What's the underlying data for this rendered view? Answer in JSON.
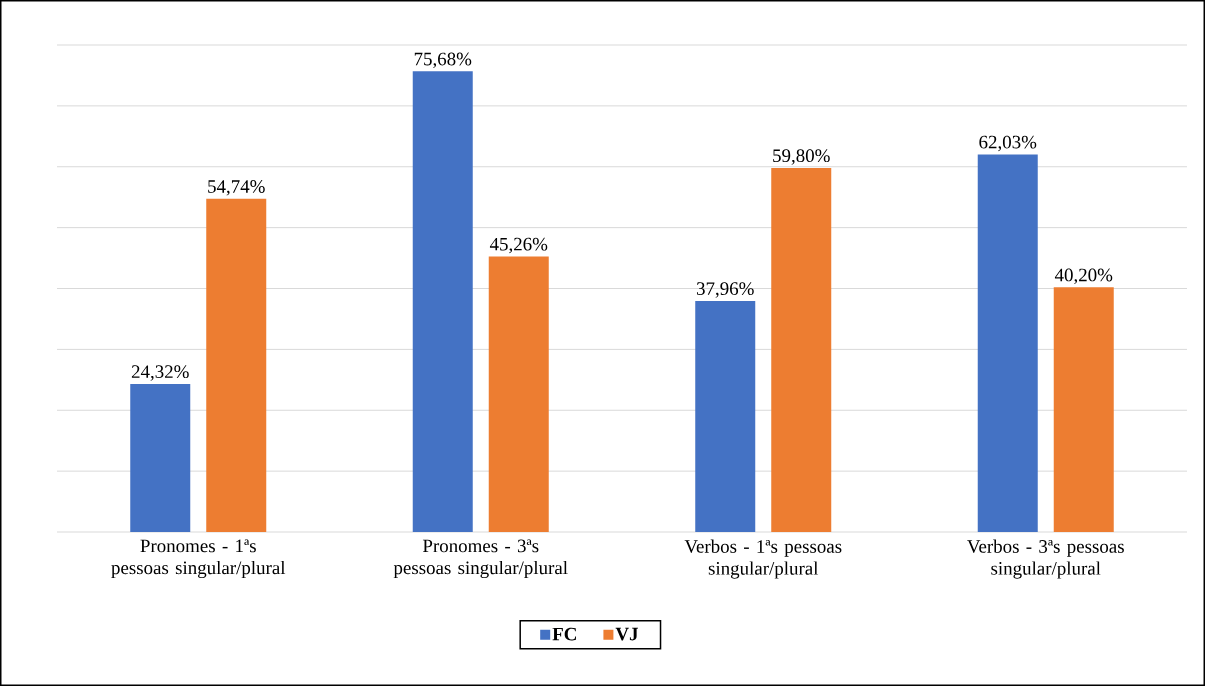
{
  "chart_data": {
    "type": "bar",
    "categories": [
      "Pronomes - 1ªs pessoas singular/plural",
      "Pronomes - 3ªs pessoas singular/plural",
      "Verbos - 1ªs pessoas singular/plural",
      "Verbos - 3ªs pessoas singular/plural"
    ],
    "series": [
      {
        "name": "FC",
        "color": "#4472c4",
        "values": [
          24.32,
          75.68,
          37.96,
          62.03
        ],
        "value_labels": [
          "24,32%",
          "75,68%",
          "37,96%",
          "62,03%"
        ]
      },
      {
        "name": "VJ",
        "color": "#ed7d31",
        "values": [
          54.74,
          45.26,
          59.8,
          40.2
        ],
        "value_labels": [
          "54,74%",
          "45,26%",
          "59,80%",
          "40,20%"
        ]
      }
    ],
    "ylim": [
      0,
      80
    ],
    "yticks": [
      {
        "value": 0,
        "label": null
      },
      {
        "value": 10,
        "label": null
      },
      {
        "value": 20,
        "label": null
      },
      {
        "value": 30,
        "label": null
      },
      {
        "value": 40,
        "label": null
      },
      {
        "value": 50,
        "label": null
      },
      {
        "value": 60,
        "label": null
      },
      {
        "value": 70,
        "label": null
      },
      {
        "value": 80,
        "label": null
      }
    ],
    "grid": "y",
    "legend": "bottom",
    "tick_labels": "x"
  }
}
